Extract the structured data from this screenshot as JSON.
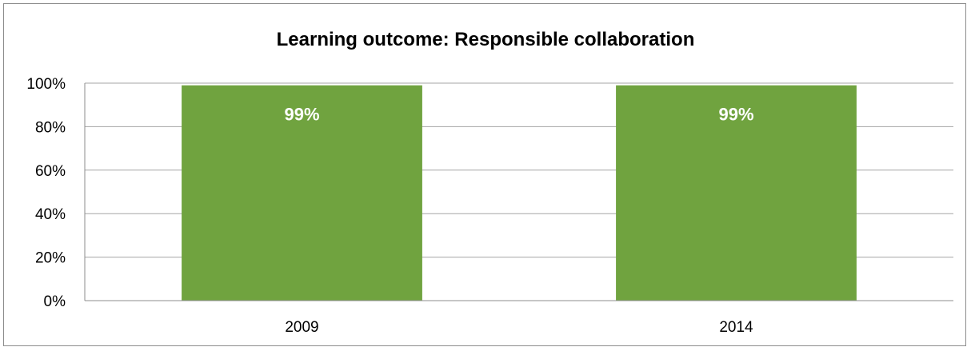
{
  "chart_data": {
    "type": "bar",
    "title": "Learning outcome: Responsible collaboration",
    "categories": [
      "2009",
      "2014"
    ],
    "values": [
      99,
      99
    ],
    "data_labels": [
      "99%",
      "99%"
    ],
    "y_ticks": [
      "0%",
      "20%",
      "40%",
      "60%",
      "80%",
      "100%"
    ],
    "ylim": [
      0,
      100
    ],
    "xlabel": "",
    "ylabel": "",
    "grid": true,
    "legend": "none",
    "bar_color": "#70a33f",
    "grid_color": "#a6a6a6"
  }
}
